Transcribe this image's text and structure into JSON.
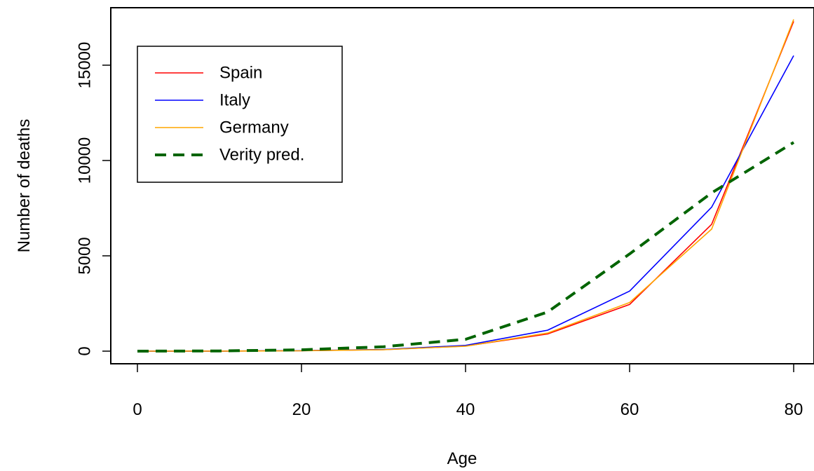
{
  "chart_data": {
    "type": "line",
    "title": "",
    "xlabel": "Age",
    "ylabel": "Number of deaths",
    "xlim": [
      0,
      80
    ],
    "ylim": [
      0,
      17000
    ],
    "x_ticks": [
      "0",
      "20",
      "40",
      "60",
      "80"
    ],
    "y_ticks": [
      "0",
      "5000",
      "10000",
      "15000"
    ],
    "x": [
      0,
      10,
      20,
      30,
      40,
      50,
      60,
      70,
      80
    ],
    "grid": false,
    "legend_position": "top-left",
    "series": [
      {
        "name": "Spain",
        "color": "#ff0000",
        "dash": "solid",
        "values": [
          0,
          5,
          25,
          80,
          270,
          900,
          2450,
          6650,
          17300
        ]
      },
      {
        "name": "Italy",
        "color": "#0000ff",
        "dash": "solid",
        "values": [
          0,
          5,
          25,
          85,
          300,
          1100,
          3150,
          7550,
          15500
        ]
      },
      {
        "name": "Germany",
        "color": "#ffa500",
        "dash": "solid",
        "values": [
          0,
          5,
          20,
          75,
          260,
          950,
          2550,
          6400,
          17400
        ]
      },
      {
        "name": "Verity pred.",
        "color": "#006400",
        "dash": "dashed",
        "values": [
          0,
          10,
          70,
          230,
          620,
          2050,
          5100,
          8300,
          10950
        ]
      }
    ]
  }
}
